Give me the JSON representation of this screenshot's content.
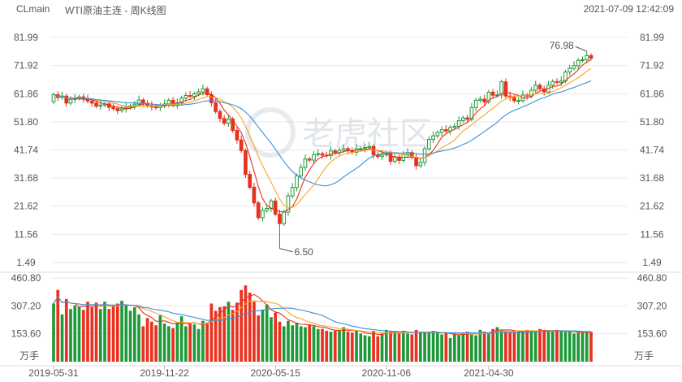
{
  "header": {
    "symbol": "CLmain",
    "title": "WTI原油主连 - 周K线图",
    "timestamp": "2021-07-09 12:42:09"
  },
  "watermark": "老虎社区",
  "colors": {
    "up": "#1f9a3a",
    "down": "#e8311f",
    "ma5": "#e8311f",
    "ma10": "#f5a623",
    "ma20": "#3a8fd9",
    "grid": "#e9e9e9"
  },
  "chart_data": [
    {
      "type": "candlestick",
      "y_ticks": [
        "81.99",
        "71.92",
        "61.86",
        "51.80",
        "41.74",
        "31.68",
        "21.62",
        "11.56",
        "1.49"
      ],
      "ylim": [
        1.49,
        81.99
      ],
      "x_labels": [
        "2019-05-31",
        "2019-11-22",
        "2020-05-15",
        "2020-11-06",
        "2021-04-30"
      ],
      "annotations": {
        "high": "76.98",
        "low": "6.50"
      },
      "close": [
        61.5,
        60.5,
        61.0,
        58.5,
        59.8,
        60.2,
        60.7,
        59.9,
        59.2,
        58.5,
        57.4,
        57.8,
        58.2,
        57.0,
        56.5,
        55.8,
        56.4,
        57.0,
        57.5,
        58.1,
        59.6,
        58.4,
        57.6,
        57.1,
        56.9,
        57.5,
        58.2,
        59.5,
        57.8,
        58.6,
        60.3,
        61.2,
        60.9,
        61.8,
        62.5,
        63.6,
        61.5,
        58.6,
        55.5,
        53.0,
        51.3,
        52.8,
        48.7,
        45.3,
        41.5,
        33.0,
        28.4,
        22.8,
        17.5,
        20.1,
        20.8,
        23.5,
        18.8,
        15.4,
        19.5,
        25.3,
        28.3,
        32.5,
        35.5,
        38.5,
        38.1,
        40.1,
        40.4,
        39.9,
        39.7,
        41.4,
        40.8,
        41.6,
        42.2,
        41.5,
        40.9,
        42.2,
        42.2,
        42.6,
        43.0,
        40.0,
        39.4,
        40.0,
        40.4,
        37.7,
        39.2,
        38.0,
        40.1,
        40.8,
        39.1,
        36.1,
        37.3,
        42.2,
        45.5,
        46.8,
        48.0,
        49.0,
        48.5,
        49.8,
        50.2,
        52.2,
        53.2,
        52.7,
        56.9,
        59.5,
        59.9,
        58.9,
        62.4,
        61.3,
        61.4,
        66.1,
        61.0,
        60.5,
        59.3,
        59.4,
        61.4,
        61.0,
        63.1,
        64.9,
        63.6,
        62.5,
        64.9,
        66.2,
        65.9,
        66.4,
        69.6,
        70.9,
        71.9,
        73.8,
        74.0,
        75.5,
        74.5
      ],
      "volume": [
        320,
        395,
        260,
        345,
        290,
        310,
        300,
        285,
        330,
        300,
        325,
        290,
        330,
        290,
        305,
        320,
        335,
        310,
        280,
        300,
        260,
        195,
        240,
        220,
        200,
        255,
        210,
        195,
        185,
        215,
        250,
        195,
        210,
        205,
        180,
        225,
        215,
        320,
        280,
        300,
        305,
        330,
        285,
        325,
        395,
        420,
        380,
        330,
        255,
        285,
        315,
        245,
        270,
        220,
        195,
        225,
        200,
        215,
        195,
        190,
        205,
        195,
        180,
        180,
        170,
        165,
        170,
        175,
        190,
        165,
        160,
        170,
        155,
        145,
        140,
        170,
        140,
        155,
        175,
        165,
        165,
        160,
        170,
        155,
        150,
        175,
        160,
        160,
        165,
        170,
        160,
        150,
        160,
        130,
        155,
        145,
        160,
        165,
        150,
        145,
        175,
        165,
        160,
        180,
        190,
        175,
        170,
        160,
        165,
        160,
        170,
        175,
        165,
        165,
        180,
        175,
        170,
        165,
        170,
        170,
        165,
        165,
        155,
        160,
        160,
        165,
        165
      ],
      "volume_ticks": [
        "460.80",
        "307.20",
        "153.60"
      ],
      "volume_unit": "万手",
      "volume_max": 460.8
    }
  ]
}
